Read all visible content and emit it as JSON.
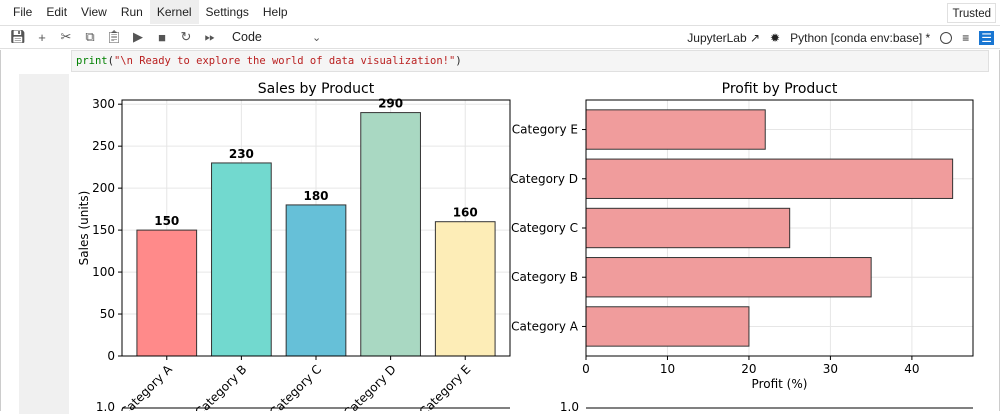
{
  "menu": [
    "File",
    "Edit",
    "View",
    "Run",
    "Kernel",
    "Settings",
    "Help"
  ],
  "trusted": "Trusted",
  "toolbar": {
    "cell_type": "Code",
    "jupyterlab": "JupyterLab",
    "kernel": "Python [conda env:base] *"
  },
  "code": {
    "fn": "print",
    "open": "(",
    "str": "\"\\n Ready to explore the world of data visualization!\"",
    "close": ")"
  },
  "chart_data": [
    {
      "type": "bar",
      "title": "Sales by Product",
      "xlabel": "",
      "ylabel": "Sales (units)",
      "categories": [
        "Category A",
        "Category B",
        "Category C",
        "Category D",
        "Category E"
      ],
      "values": [
        150,
        230,
        180,
        290,
        160
      ],
      "colors": [
        "#ff8a8a",
        "#72d9cf",
        "#66c0d8",
        "#a9d8c2",
        "#fdedb7"
      ],
      "ylim": [
        0,
        305
      ],
      "yticks": [
        0,
        50,
        100,
        150,
        200,
        250,
        300
      ],
      "grid": true
    },
    {
      "type": "bar",
      "orientation": "horizontal",
      "title": "Profit by Product",
      "xlabel": "Profit (%)",
      "ylabel": "",
      "categories": [
        "Category A",
        "Category B",
        "Category C",
        "Category D",
        "Category E"
      ],
      "values": [
        20,
        35,
        25,
        45,
        22
      ],
      "color": "#f09c9c",
      "xlim": [
        0,
        47.5
      ],
      "xticks": [
        0,
        10,
        20,
        30,
        40
      ],
      "grid": true
    }
  ],
  "lower_ticks": {
    "left": "1.0",
    "right": "1.0"
  }
}
